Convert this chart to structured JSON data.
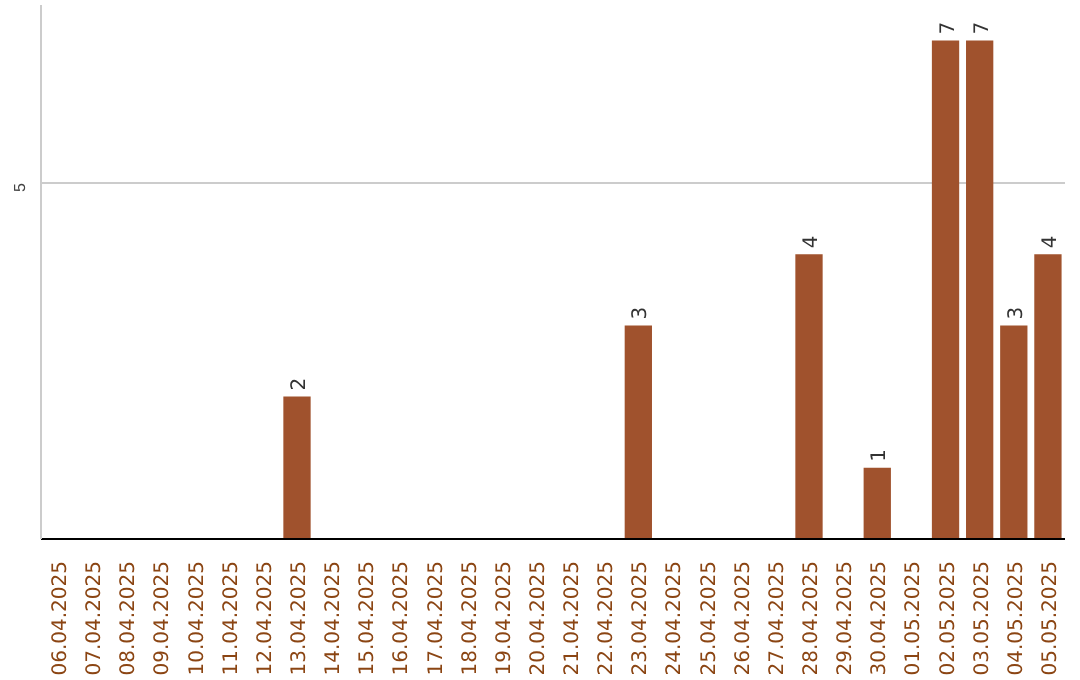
{
  "chart_data": {
    "type": "bar",
    "categories": [
      "06.04.2025",
      "07.04.2025",
      "08.04.2025",
      "09.04.2025",
      "10.04.2025",
      "11.04.2025",
      "12.04.2025",
      "13.04.2025",
      "14.04.2025",
      "15.04.2025",
      "16.04.2025",
      "17.04.2025",
      "18.04.2025",
      "19.04.2025",
      "20.04.2025",
      "21.04.2025",
      "22.04.2025",
      "23.04.2025",
      "24.04.2025",
      "25.04.2025",
      "26.04.2025",
      "27.04.2025",
      "28.04.2025",
      "29.04.2025",
      "30.04.2025",
      "01.05.2025",
      "02.05.2025",
      "03.05.2025",
      "04.05.2025",
      "05.05.2025"
    ],
    "values": [
      0,
      0,
      0,
      0,
      0,
      0,
      0,
      2,
      0,
      0,
      0,
      0,
      0,
      0,
      0,
      0,
      0,
      3,
      0,
      0,
      0,
      0,
      4,
      0,
      1,
      0,
      7,
      7,
      3,
      4
    ],
    "value_labels": [
      null,
      null,
      null,
      null,
      null,
      null,
      null,
      "2",
      null,
      null,
      null,
      null,
      null,
      null,
      null,
      null,
      null,
      "3",
      null,
      null,
      null,
      null,
      "4",
      null,
      "1",
      null,
      "7",
      "7",
      "3",
      "4"
    ],
    "color": "#a0522d",
    "ylim": [
      0,
      7.5
    ],
    "yticks": [
      {
        "value": 0,
        "label": null
      },
      5
    ],
    "grid": "y"
  }
}
